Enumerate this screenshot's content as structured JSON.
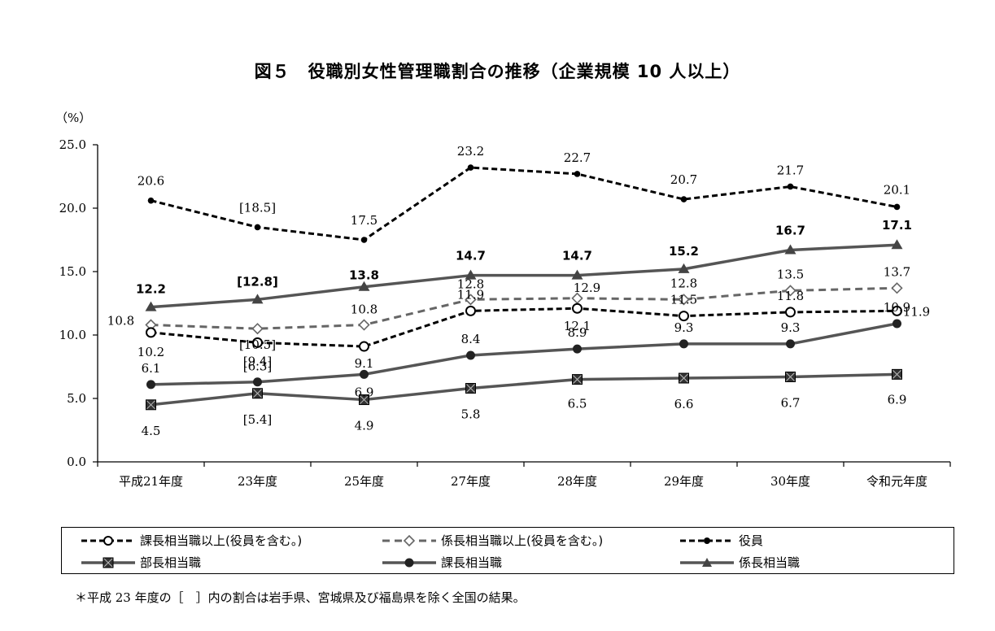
{
  "chart_data": {
    "type": "line",
    "title": "図５　役職別女性管理職割合の推移（企業規模 10 人以上）",
    "ylabel": "（%）",
    "ylim": [
      0,
      25
    ],
    "yticks": [
      "0.0",
      "5.0",
      "10.0",
      "15.0",
      "20.0",
      "25.0"
    ],
    "categories": [
      "平成21年度",
      "23年度",
      "25年度",
      "27年度",
      "28年度",
      "29年度",
      "30年度",
      "令和元年度"
    ],
    "series": [
      {
        "name": "役員",
        "style": "dashed-black",
        "marker": "dot",
        "color": "#000000",
        "values": [
          20.6,
          18.5,
          17.5,
          23.2,
          22.7,
          20.7,
          21.7,
          20.1
        ],
        "labels": [
          "20.6",
          "[18.5]",
          "17.5",
          "23.2",
          "22.7",
          "20.7",
          "21.7",
          "20.1"
        ]
      },
      {
        "name": "係長相当職",
        "style": "solid-gray",
        "marker": "triangle",
        "color": "#555555",
        "values": [
          12.2,
          12.8,
          13.8,
          14.7,
          14.7,
          15.2,
          16.7,
          17.1
        ],
        "labels": [
          "12.2",
          "[12.8]",
          "13.8",
          "14.7",
          "14.7",
          "15.2",
          "16.7",
          "17.1"
        ]
      },
      {
        "name": "係長相当職以上(役員を含む。)",
        "style": "dashed-gray",
        "marker": "diamond",
        "color": "#666666",
        "values": [
          10.8,
          10.5,
          10.8,
          12.8,
          12.9,
          12.8,
          13.5,
          13.7
        ],
        "labels": [
          "10.8",
          "[10.5]",
          "10.8",
          "12.8",
          "12.9",
          "12.8",
          "13.5",
          "13.7"
        ]
      },
      {
        "name": "課長相当職以上(役員を含む。)",
        "style": "dashed-black",
        "marker": "circle-open",
        "color": "#000000",
        "values": [
          10.2,
          9.4,
          9.1,
          11.9,
          12.1,
          11.5,
          11.8,
          11.9
        ],
        "labels": [
          "10.2",
          "[9.4]",
          "9.1",
          "11.9",
          "12.1",
          "11.5",
          "11.8",
          "11.9"
        ]
      },
      {
        "name": "課長相当職",
        "style": "solid-gray",
        "marker": "dot",
        "color": "#555555",
        "values": [
          6.1,
          6.3,
          6.9,
          8.4,
          8.9,
          9.3,
          9.3,
          10.9
        ],
        "labels": [
          "6.1",
          "[6.3]",
          "6.9",
          "8.4",
          "8.9",
          "9.3",
          "9.3",
          "10.9"
        ]
      },
      {
        "name": "部長相当職",
        "style": "solid-gray",
        "marker": "square-x",
        "color": "#555555",
        "values": [
          4.5,
          5.4,
          4.9,
          5.8,
          6.5,
          6.6,
          6.7,
          6.9
        ],
        "labels": [
          "4.5",
          "[5.4]",
          "4.9",
          "5.8",
          "6.5",
          "6.6",
          "6.7",
          "6.9"
        ]
      }
    ],
    "legend": [
      "課長相当職以上(役員を含む。)",
      "係長相当職以上(役員を含む。)",
      "役員",
      "部長相当職",
      "課長相当職",
      "係長相当職"
    ],
    "footnote": "＊平成 23 年度の［　］内の割合は岩手県、宮城県及び福島県を除く全国の結果。"
  }
}
